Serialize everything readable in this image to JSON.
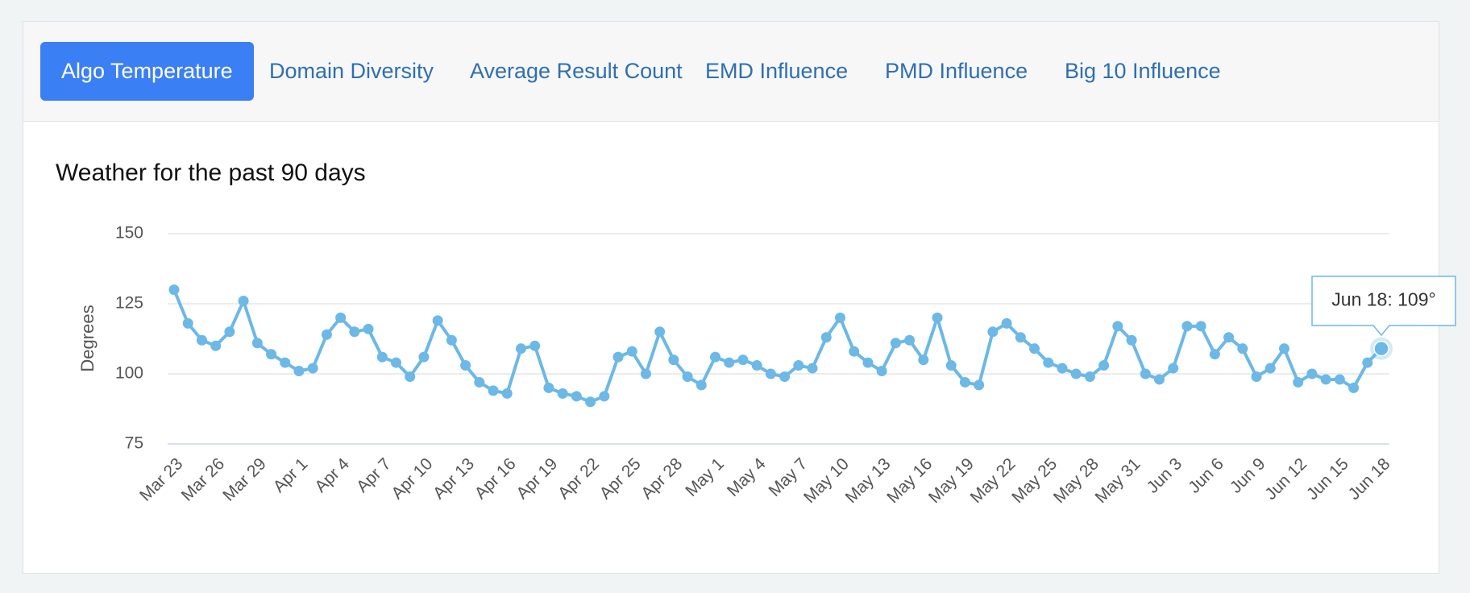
{
  "tabs": [
    "Algo Temperature",
    "Domain Diversity",
    "Average Result Count",
    "EMD Influence",
    "PMD Influence",
    "Big 10 Influence"
  ],
  "chart_data": {
    "type": "line",
    "title": "Weather for the past 90 days",
    "ylabel": "Degrees",
    "categories": [
      "Mar 23",
      null,
      null,
      "Mar 26",
      null,
      null,
      "Mar 29",
      null,
      null,
      "Apr 1",
      null,
      null,
      "Apr 4",
      null,
      null,
      "Apr 7",
      null,
      null,
      "Apr 10",
      null,
      null,
      "Apr 13",
      null,
      null,
      "Apr 16",
      null,
      null,
      "Apr 19",
      null,
      null,
      "Apr 22",
      null,
      null,
      "Apr 25",
      null,
      null,
      "Apr 28",
      null,
      null,
      "May 1",
      null,
      null,
      "May 4",
      null,
      null,
      "May 7",
      null,
      null,
      "May 10",
      null,
      null,
      "May 13",
      null,
      null,
      "May 16",
      null,
      null,
      "May 19",
      null,
      null,
      "May 22",
      null,
      null,
      "May 25",
      null,
      null,
      "May 28",
      null,
      null,
      "May 31",
      null,
      null,
      "Jun 3",
      null,
      null,
      "Jun 6",
      null,
      null,
      "Jun 9",
      null,
      null,
      "Jun 12",
      null,
      null,
      "Jun 15",
      null,
      null,
      "Jun 18"
    ],
    "values": [
      130,
      118,
      112,
      110,
      115,
      126,
      111,
      107,
      104,
      101,
      102,
      114,
      120,
      115,
      116,
      106,
      104,
      99,
      106,
      119,
      112,
      103,
      97,
      94,
      93,
      109,
      110,
      95,
      93,
      92,
      90,
      92,
      106,
      108,
      100,
      115,
      105,
      99,
      96,
      106,
      104,
      105,
      103,
      100,
      99,
      103,
      102,
      113,
      120,
      108,
      104,
      101,
      111,
      112,
      105,
      120,
      103,
      97,
      96,
      115,
      118,
      113,
      109,
      104,
      102,
      100,
      99,
      103,
      117,
      112,
      100,
      98,
      102,
      117,
      117,
      107,
      113,
      109,
      99,
      102,
      109,
      97,
      100,
      98,
      98,
      95,
      104,
      109
    ],
    "color": "#6cb8e6",
    "ylim": [
      75,
      150
    ],
    "yticks": [
      75,
      100,
      125,
      150
    ],
    "grid": true,
    "tooltip": "Jun 18: 109°"
  }
}
